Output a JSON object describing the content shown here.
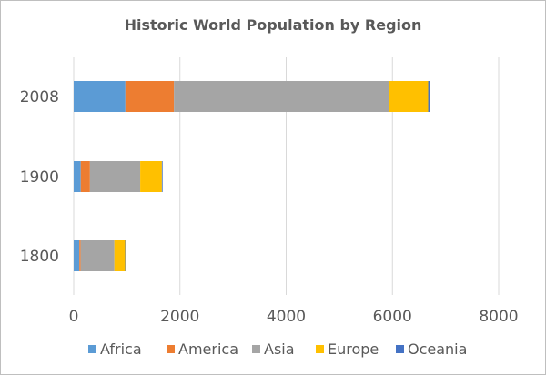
{
  "chart_data": {
    "type": "bar",
    "orientation": "horizontal",
    "stacked": true,
    "title": "Historic World Population by Region",
    "xlabel": "",
    "ylabel": "",
    "categories": [
      "2008",
      "1900",
      "1800"
    ],
    "xlim": [
      0,
      8000
    ],
    "xticks": [
      0,
      2000,
      4000,
      6000,
      8000
    ],
    "grid": true,
    "legend_position": "bottom",
    "series": [
      {
        "name": "Africa",
        "color": "#5b9bd5",
        "values": [
          973,
          133,
          107
        ]
      },
      {
        "name": "America",
        "color": "#ed7d31",
        "values": [
          914,
          173,
          24
        ]
      },
      {
        "name": "Asia",
        "color": "#a5a5a5",
        "values": [
          4054,
          946,
          635
        ]
      },
      {
        "name": "Europe",
        "color": "#ffc000",
        "values": [
          732,
          408,
          203
        ]
      },
      {
        "name": "Oceania",
        "color": "#4472c4",
        "values": [
          34,
          6,
          2
        ]
      }
    ]
  }
}
